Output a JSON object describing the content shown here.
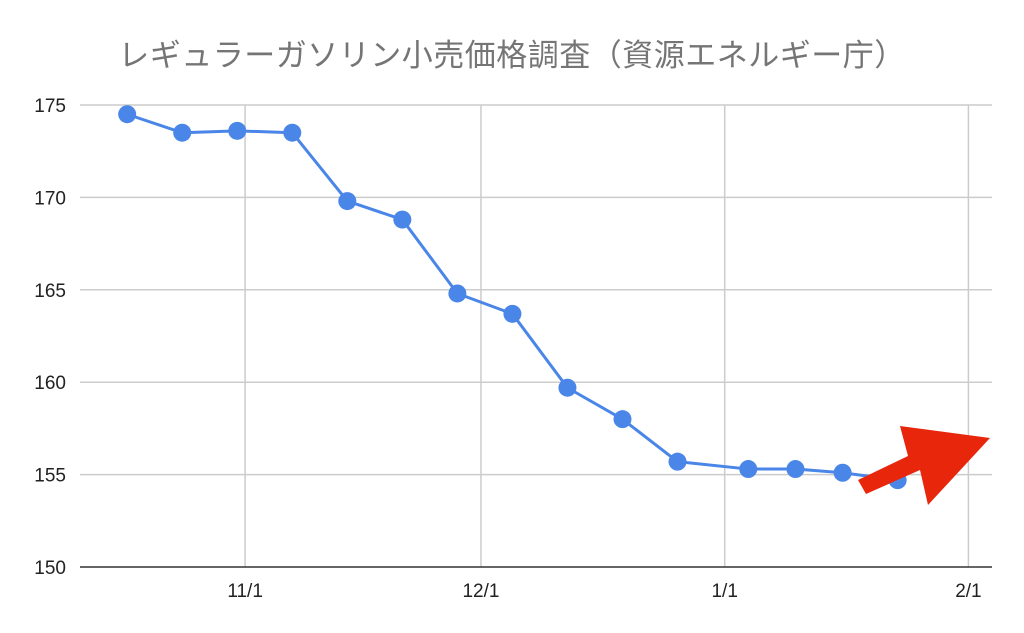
{
  "chart_data": {
    "type": "line",
    "title": "レギュラーガソリン小売価格調査（資源エネルギー庁）",
    "xlabel": "",
    "ylabel": "",
    "ylim": [
      150,
      175
    ],
    "yticks": [
      150,
      155,
      160,
      165,
      170,
      175
    ],
    "xlim": [
      "2022-10-11",
      "2023-02-04"
    ],
    "xticks": [
      {
        "label": "11/1",
        "date": "2022-11-01"
      },
      {
        "label": "12/1",
        "date": "2022-12-01"
      },
      {
        "label": "1/1",
        "date": "2023-01-01"
      },
      {
        "label": "2/1",
        "date": "2023-02-01"
      }
    ],
    "grid": true,
    "legend": "none",
    "series": [
      {
        "color": "#4a86e8",
        "points": [
          {
            "x": "2022-10-17",
            "y": 174.5
          },
          {
            "x": "2022-10-24",
            "y": 173.5
          },
          {
            "x": "2022-10-31",
            "y": 173.6
          },
          {
            "x": "2022-11-07",
            "y": 173.5
          },
          {
            "x": "2022-11-14",
            "y": 169.8
          },
          {
            "x": "2022-11-21",
            "y": 168.8
          },
          {
            "x": "2022-11-28",
            "y": 164.8
          },
          {
            "x": "2022-12-05",
            "y": 163.7
          },
          {
            "x": "2022-12-12",
            "y": 159.7
          },
          {
            "x": "2022-12-19",
            "y": 158.0
          },
          {
            "x": "2022-12-26",
            "y": 155.7
          },
          {
            "x": "2023-01-04",
            "y": 155.3
          },
          {
            "x": "2023-01-10",
            "y": 155.3
          },
          {
            "x": "2023-01-16",
            "y": 155.1
          },
          {
            "x": "2023-01-23",
            "y": 154.7
          }
        ]
      }
    ],
    "annotation": {
      "shape": "arrow",
      "direction": "up-right",
      "color": "#e8260c"
    },
    "colors": {
      "grid": "#cccccc",
      "axis": "#333333"
    }
  }
}
